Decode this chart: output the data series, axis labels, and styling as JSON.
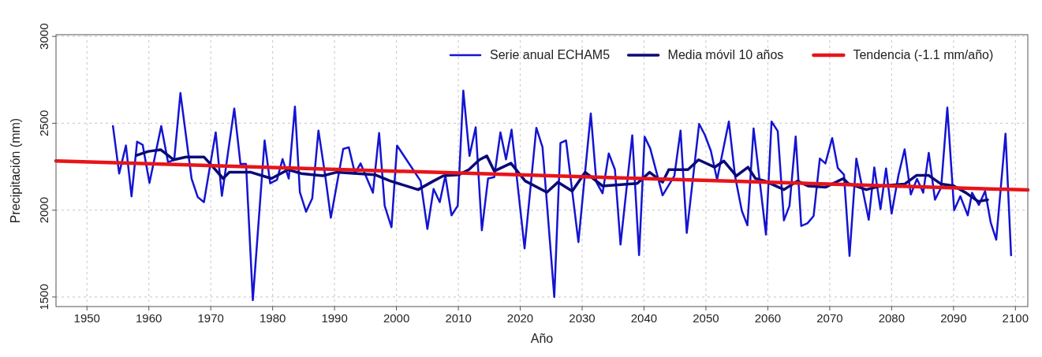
{
  "chart_data": {
    "type": "line",
    "xlabel": "Año",
    "ylabel": "Precipitación (mm)",
    "xlim": [
      1945,
      2102
    ],
    "ylim": [
      1445,
      3010
    ],
    "xticks": [
      1950,
      1960,
      1970,
      1980,
      1990,
      2000,
      2010,
      2020,
      2030,
      2040,
      2050,
      2060,
      2070,
      2080,
      2090,
      2100
    ],
    "yticks": [
      1500,
      2000,
      2500,
      3000
    ],
    "grid": true,
    "legend": "top right",
    "series": [
      {
        "name": "Serie anual ECHAM5",
        "color": "#1414d2",
        "x": [
          1954.2,
          1955.2,
          1956.3,
          1957.2,
          1958.1,
          1959.0,
          1960.1,
          1962.0,
          1963.1,
          1964.1,
          1965.1,
          1966.9,
          1967.9,
          1968.9,
          1970.8,
          1971.8,
          1973.8,
          1974.8,
          1975.7,
          1976.8,
          1978.7,
          1979.6,
          1980.7,
          1981.6,
          1982.6,
          1983.6,
          1984.4,
          1985.4,
          1986.4,
          1987.4,
          1988.5,
          1989.4,
          1991.4,
          1992.3,
          1993.3,
          1994.2,
          1996.2,
          1997.2,
          1998.1,
          1999.2,
          2000.1,
          2003.9,
          2005.0,
          2006.0,
          2007.0,
          2007.9,
          2008.9,
          2009.9,
          2010.8,
          2011.8,
          2012.8,
          2013.8,
          2014.8,
          2015.8,
          2016.8,
          2017.7,
          2018.6,
          2020.7,
          2022.6,
          2023.6,
          2025.5,
          2026.5,
          2027.4,
          2029.4,
          2030.5,
          2031.4,
          2032.3,
          2033.3,
          2034.3,
          2035.3,
          2036.2,
          2038.1,
          2039.2,
          2040.1,
          2041.0,
          2043.0,
          2044.9,
          2045.9,
          2046.9,
          2048.9,
          2049.8,
          2050.8,
          2051.8,
          2053.7,
          2054.7,
          2055.8,
          2056.7,
          2057.7,
          2059.7,
          2060.6,
          2061.6,
          2062.6,
          2063.5,
          2064.5,
          2065.4,
          2066.4,
          2067.4,
          2068.4,
          2069.3,
          2070.4,
          2071.3,
          2072.3,
          2073.2,
          2074.3,
          2075.2,
          2076.3,
          2077.2,
          2078.2,
          2079.1,
          2080.0,
          2081.1,
          2082.1,
          2083.1,
          2084.1,
          2085.1,
          2086.0,
          2087.0,
          2088.0,
          2089.0,
          2090.1,
          2091.1,
          2092.3,
          2093.0,
          2094.1,
          2095.1,
          2096.0,
          2096.9,
          2098.4,
          2099.3
        ],
        "values": [
          2484,
          2211,
          2372,
          2079,
          2394,
          2376,
          2157,
          2484,
          2276,
          2290,
          2674,
          2182,
          2075,
          2046,
          2448,
          2082,
          2585,
          2266,
          2266,
          1482,
          2401,
          2154,
          2175,
          2294,
          2182,
          2596,
          2103,
          1991,
          2068,
          2458,
          2197,
          1956,
          2352,
          2362,
          2211,
          2269,
          2100,
          2444,
          2025,
          1902,
          2372,
          2168,
          1892,
          2122,
          2046,
          2198,
          1970,
          2025,
          2688,
          2312,
          2477,
          1884,
          2182,
          2190,
          2448,
          2292,
          2463,
          1780,
          2474,
          2362,
          1500,
          2387,
          2401,
          1816,
          2227,
          2556,
          2161,
          2097,
          2326,
          2233,
          1802,
          2431,
          1741,
          2422,
          2355,
          2085,
          2197,
          2458,
          1869,
          2496,
          2435,
          2341,
          2175,
          2510,
          2197,
          1996,
          1913,
          2470,
          1859,
          2510,
          2455,
          1941,
          2025,
          2424,
          1909,
          1924,
          1967,
          2297,
          2269,
          2415,
          2243,
          2204,
          1737,
          2297,
          2139,
          1945,
          2246,
          2006,
          2240,
          1980,
          2200,
          2350,
          2090,
          2180,
          2100,
          2330,
          2060,
          2130,
          2590,
          2000,
          2080,
          1970,
          2100,
          2030,
          2110,
          1930,
          1830,
          2440,
          1740
        ]
      },
      {
        "name": "Media móvil 10 años",
        "color": "#0a0a78",
        "x": [
          1958.0,
          1959.9,
          1961.9,
          1964.0,
          1966.0,
          1968.9,
          1970.0,
          1972.0,
          1973.0,
          1976.5,
          1979.8,
          1982.5,
          1984.6,
          1988.1,
          1990.3,
          1996.5,
          1999.0,
          2003.5,
          2006.0,
          2007.6,
          2010.1,
          2011.7,
          2013.4,
          2014.6,
          2015.8,
          2018.5,
          2020.8,
          2024.3,
          2026.1,
          2028.4,
          2030.5,
          2033.3,
          2038.9,
          2040.9,
          2043.0,
          2044.0,
          2047.1,
          2048.8,
          2051.4,
          2052.9,
          2054.9,
          2056.8,
          2058.0,
          2059.5,
          2062.6,
          2064.8,
          2066.5,
          2069.3,
          2072.2,
          2073.0,
          2075.9,
          2078.2,
          2082.1,
          2084.0,
          2086.0,
          2088.0,
          2090.0,
          2092.0,
          2094.0,
          2095.5
        ],
        "values": [
          2315,
          2338,
          2348,
          2290,
          2306,
          2306,
          2263,
          2182,
          2218,
          2218,
          2182,
          2233,
          2211,
          2198,
          2218,
          2204,
          2168,
          2118,
          2168,
          2198,
          2204,
          2233,
          2290,
          2312,
          2225,
          2270,
          2168,
          2103,
          2161,
          2110,
          2218,
          2139,
          2154,
          2218,
          2161,
          2233,
          2233,
          2290,
          2247,
          2283,
          2197,
          2247,
          2182,
          2168,
          2118,
          2168,
          2139,
          2132,
          2182,
          2153,
          2118,
          2139,
          2150,
          2200,
          2200,
          2150,
          2140,
          2100,
          2050,
          2060
        ]
      },
      {
        "name": "Tendencia (-1.1 mm/año)",
        "color": "#e8141a",
        "x": [
          1945,
          2102
        ],
        "values": [
          2283,
          2116
        ]
      }
    ]
  }
}
